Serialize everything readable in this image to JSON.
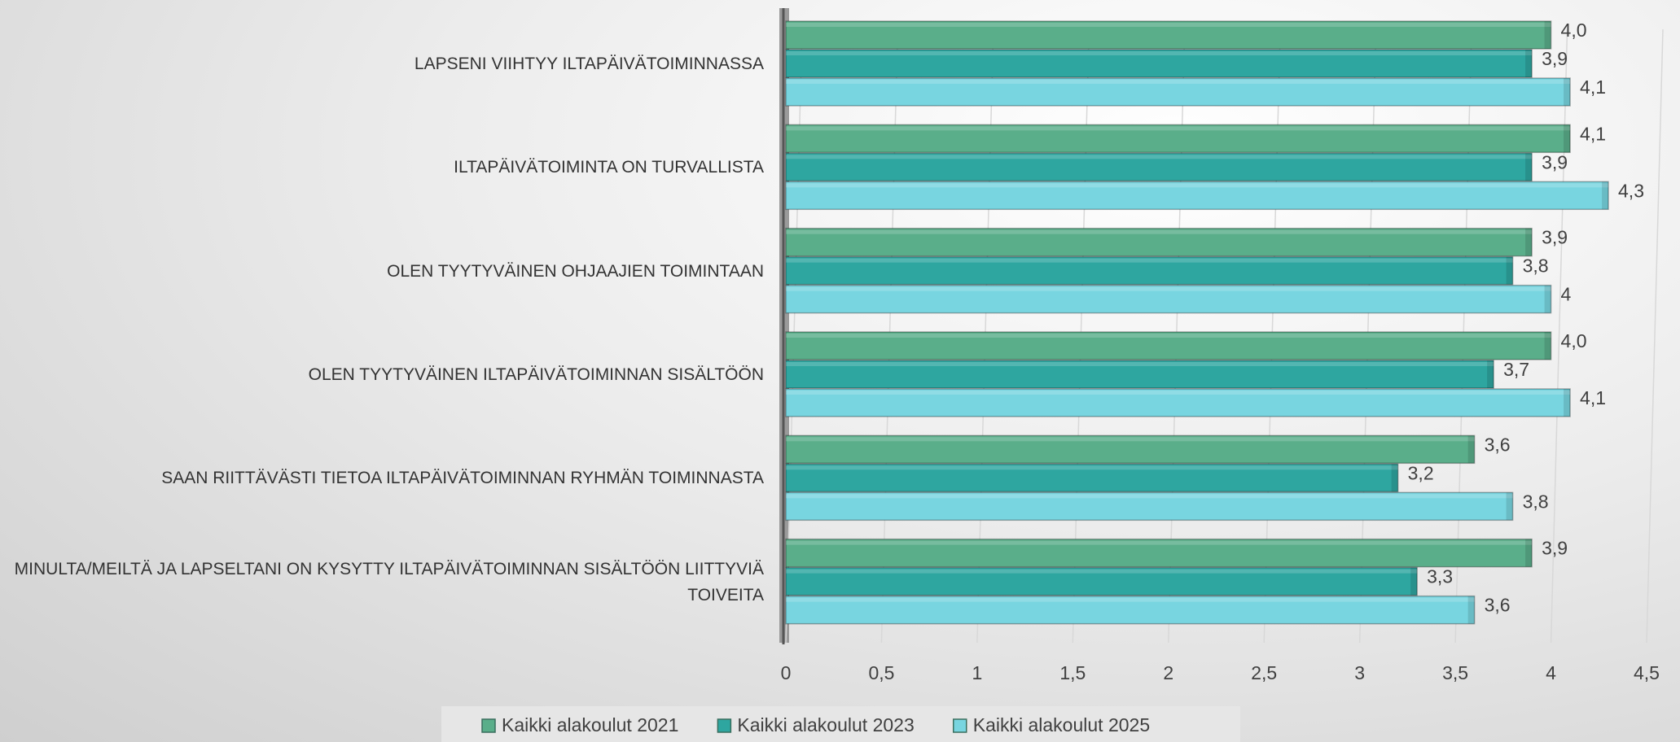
{
  "chart_data": {
    "type": "bar",
    "orientation": "horizontal",
    "categories": [
      "LAPSENI VIIHTYY ILTAPÄIVÄTOIMINNASSA",
      "ILTAPÄIVÄTOIMINTA ON TURVALLISTA",
      "OLEN TYYTYVÄINEN OHJAAJIEN TOIMINTAAN",
      "OLEN TYYTYVÄINEN ILTAPÄIVÄTOIMINNAN SISÄLTÖÖN",
      "SAAN RIITTÄVÄSTI TIETOA ILTAPÄIVÄTOIMINNAN RYHMÄN TOIMINNASTA",
      "MINULTA/MEILTÄ JA LAPSELTANI ON KYSYTTY ILTAPÄIVÄTOIMINNAN SISÄLTÖÖN LIITTYVIÄ TOIVEITA"
    ],
    "series": [
      {
        "name": "Kaikki alakoulut 2021",
        "color": "#5aae8a",
        "values": [
          4.0,
          4.1,
          3.9,
          4.0,
          3.6,
          3.9
        ],
        "value_labels": [
          "4,0",
          "4,1",
          "3,9",
          "4,0",
          "3,6",
          "3,9"
        ]
      },
      {
        "name": "Kaikki alakoulut 2023",
        "color": "#2ea6a0",
        "values": [
          3.9,
          3.9,
          3.8,
          3.7,
          3.2,
          3.3
        ],
        "value_labels": [
          "3,9",
          "3,9",
          "3,8",
          "3,7",
          "3,2",
          "3,3"
        ]
      },
      {
        "name": "Kaikki alakoulut 2025",
        "color": "#78d5e0",
        "values": [
          4.1,
          4.3,
          4,
          4.1,
          3.8,
          3.6
        ],
        "value_labels": [
          "4,1",
          "4,3",
          "4",
          "4,1",
          "3,8",
          "3,6"
        ]
      }
    ],
    "xlim": [
      0,
      4.5
    ],
    "xticks": [
      0,
      {
        "value": 0.5,
        "label": "0,5"
      },
      1,
      {
        "value": 1.5,
        "label": "1,5"
      },
      2,
      {
        "value": 2.5,
        "label": "2,5"
      },
      3,
      {
        "value": 3.5,
        "label": "3,5"
      },
      4,
      {
        "value": 4.5,
        "label": "4,5"
      }
    ],
    "grid": true,
    "legend": "bottom"
  }
}
